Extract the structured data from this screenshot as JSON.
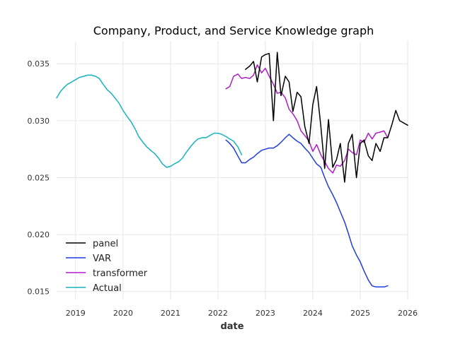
{
  "chart_data": {
    "type": "line",
    "title": "Company, Product, and Service Knowledge graph",
    "xlabel": "date",
    "ylabel": "",
    "xlim": [
      2018.6,
      2026.0
    ],
    "ylim": [
      0.0143,
      0.037
    ],
    "x_ticks": [
      2019,
      2020,
      2021,
      2022,
      2023,
      2024,
      2025,
      2026
    ],
    "x_tick_labels": [
      "2019",
      "2020",
      "2021",
      "2022",
      "2023",
      "2024",
      "2025",
      "2026"
    ],
    "y_ticks": [
      0.015,
      0.02,
      0.025,
      0.03,
      0.035
    ],
    "y_tick_labels": [
      "0.015",
      "0.020",
      "0.025",
      "0.030",
      "0.035"
    ],
    "grid": true,
    "legend_position": "lower-left",
    "series": [
      {
        "name": "panel",
        "color": "#000000",
        "x": [
          2022.58,
          2022.67,
          2022.75,
          2022.83,
          2022.92,
          2023.0,
          2023.08,
          2023.17,
          2023.25,
          2023.33,
          2023.42,
          2023.5,
          2023.58,
          2023.67,
          2023.75,
          2023.83,
          2023.92,
          2024.0,
          2024.08,
          2024.17,
          2024.25,
          2024.33,
          2024.42,
          2024.5,
          2024.58,
          2024.67,
          2024.75,
          2024.83,
          2024.92,
          2025.0,
          2025.08,
          2025.17,
          2025.25,
          2025.33,
          2025.42,
          2025.5,
          2025.58,
          2025.67,
          2025.75,
          2025.83,
          2026.0
        ],
        "values": [
          0.0345,
          0.0348,
          0.0352,
          0.0334,
          0.0356,
          0.0358,
          0.0359,
          0.03,
          0.036,
          0.0322,
          0.0339,
          0.0334,
          0.0308,
          0.0325,
          0.0321,
          0.0295,
          0.028,
          0.0314,
          0.033,
          0.0295,
          0.0258,
          0.0301,
          0.0259,
          0.0266,
          0.028,
          0.0246,
          0.028,
          0.0288,
          0.025,
          0.028,
          0.0283,
          0.0269,
          0.0265,
          0.028,
          0.0273,
          0.0285,
          0.0285,
          0.0297,
          0.0309,
          0.03,
          0.0296
        ]
      },
      {
        "name": "VAR",
        "color": "#1f3de0",
        "x": [
          2022.17,
          2022.25,
          2022.33,
          2022.42,
          2022.5,
          2022.58,
          2022.67,
          2022.75,
          2022.83,
          2022.92,
          2023.0,
          2023.08,
          2023.17,
          2023.25,
          2023.33,
          2023.42,
          2023.5,
          2023.58,
          2023.67,
          2023.75,
          2023.83,
          2023.92,
          2024.0,
          2024.08,
          2024.17,
          2024.25,
          2024.33,
          2024.42,
          2024.5,
          2024.58,
          2024.67,
          2024.75,
          2024.83,
          2024.92,
          2025.0,
          2025.08,
          2025.17,
          2025.25,
          2025.33,
          2025.42,
          2025.5,
          2025.58
        ],
        "values": [
          0.0283,
          0.028,
          0.0276,
          0.0269,
          0.0263,
          0.0263,
          0.0266,
          0.0268,
          0.0271,
          0.0274,
          0.0275,
          0.0276,
          0.0276,
          0.0278,
          0.0281,
          0.0285,
          0.0288,
          0.0285,
          0.0282,
          0.028,
          0.0276,
          0.0272,
          0.0267,
          0.0262,
          0.0259,
          0.025,
          0.0242,
          0.0235,
          0.0228,
          0.022,
          0.0211,
          0.0201,
          0.019,
          0.0182,
          0.0176,
          0.0168,
          0.016,
          0.0155,
          0.0154,
          0.0154,
          0.0154,
          0.0155
        ]
      },
      {
        "name": "transformer",
        "color": "#b01cc8",
        "x": [
          2022.17,
          2022.25,
          2022.33,
          2022.42,
          2022.5,
          2022.58,
          2022.67,
          2022.75,
          2022.83,
          2022.92,
          2023.0,
          2023.08,
          2023.17,
          2023.25,
          2023.33,
          2023.42,
          2023.5,
          2023.58,
          2023.67,
          2023.75,
          2023.83,
          2023.92,
          2024.0,
          2024.08,
          2024.17,
          2024.25,
          2024.33,
          2024.42,
          2024.5,
          2024.58,
          2024.67,
          2024.75,
          2024.83,
          2024.92,
          2025.0,
          2025.08,
          2025.17,
          2025.25,
          2025.33,
          2025.42,
          2025.5,
          2025.58
        ],
        "values": [
          0.0328,
          0.033,
          0.0339,
          0.0341,
          0.0337,
          0.0338,
          0.0337,
          0.034,
          0.0349,
          0.0342,
          0.0346,
          0.0339,
          0.0332,
          0.0324,
          0.0325,
          0.032,
          0.031,
          0.0306,
          0.03,
          0.0291,
          0.0287,
          0.0282,
          0.0273,
          0.0279,
          0.027,
          0.0264,
          0.0258,
          0.0254,
          0.0261,
          0.026,
          0.0265,
          0.0275,
          0.0272,
          0.027,
          0.0283,
          0.0281,
          0.0289,
          0.0284,
          0.0289,
          0.029,
          0.0291,
          0.0285
        ]
      },
      {
        "name": "Actual",
        "color": "#17b3be",
        "x": [
          2018.6,
          2018.67,
          2018.75,
          2018.83,
          2018.92,
          2019.0,
          2019.08,
          2019.17,
          2019.25,
          2019.33,
          2019.42,
          2019.5,
          2019.58,
          2019.67,
          2019.75,
          2019.83,
          2019.92,
          2020.0,
          2020.08,
          2020.17,
          2020.25,
          2020.33,
          2020.42,
          2020.5,
          2020.58,
          2020.67,
          2020.75,
          2020.83,
          2020.92,
          2021.0,
          2021.08,
          2021.17,
          2021.25,
          2021.33,
          2021.42,
          2021.5,
          2021.58,
          2021.67,
          2021.75,
          2021.83,
          2021.92,
          2022.0,
          2022.08,
          2022.17,
          2022.25,
          2022.33,
          2022.42,
          2022.5
        ],
        "values": [
          0.032,
          0.0325,
          0.0329,
          0.0332,
          0.0334,
          0.0336,
          0.0338,
          0.0339,
          0.034,
          0.034,
          0.0339,
          0.0337,
          0.0332,
          0.0327,
          0.0324,
          0.032,
          0.0315,
          0.0309,
          0.0304,
          0.0299,
          0.0293,
          0.0286,
          0.0281,
          0.0277,
          0.0274,
          0.0271,
          0.0267,
          0.0262,
          0.0259,
          0.026,
          0.0262,
          0.0264,
          0.0267,
          0.0272,
          0.0277,
          0.0281,
          0.0284,
          0.0285,
          0.0285,
          0.0287,
          0.0289,
          0.0289,
          0.0288,
          0.0286,
          0.0284,
          0.0282,
          0.0277,
          0.027
        ]
      }
    ]
  }
}
